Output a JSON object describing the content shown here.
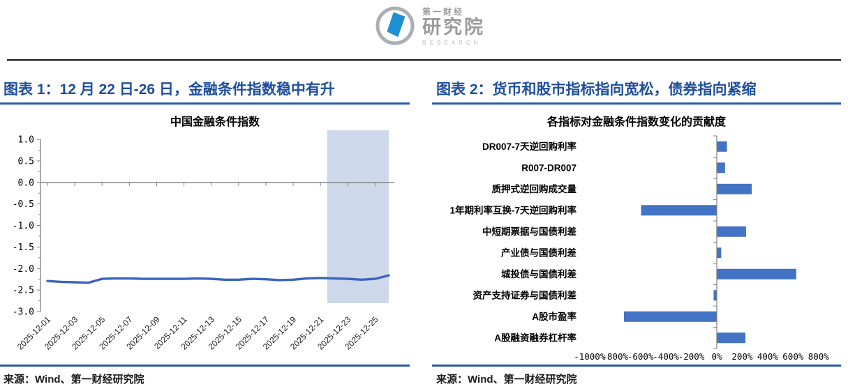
{
  "logo": {
    "brand_small": "第一财经",
    "brand_large": "研究院",
    "brand_sub": "RESEARCH"
  },
  "colors": {
    "header_blue": "#1f4e9c",
    "rule_blue": "#2a56a7",
    "bar_blue": "#4472c4",
    "line_blue": "#3a64be",
    "highlight": "#ced8eb",
    "axis_gray": "#808080"
  },
  "left_panel": {
    "header": "图表 1：12 月 22 日-26 日，金融条件指数稳中有升",
    "source": "来源：Wind、第一财经研究院"
  },
  "right_panel": {
    "header": "图表 2：货币和股市指标指向宽松，债券指向紧缩",
    "source": "来源：Wind、第一财经研究院"
  },
  "chart_data": [
    {
      "type": "line",
      "title": "中国金融条件指数",
      "x": [
        "2025-12-01",
        "2025-12-02",
        "2025-12-03",
        "2025-12-04",
        "2025-12-05",
        "2025-12-06",
        "2025-12-07",
        "2025-12-08",
        "2025-12-09",
        "2025-12-10",
        "2025-12-11",
        "2025-12-12",
        "2025-12-13",
        "2025-12-14",
        "2025-12-15",
        "2025-12-16",
        "2025-12-17",
        "2025-12-18",
        "2025-12-19",
        "2025-12-20",
        "2025-12-21",
        "2025-12-22",
        "2025-12-23",
        "2025-12-24",
        "2025-12-25",
        "2025-12-26"
      ],
      "values": [
        -2.29,
        -2.31,
        -2.32,
        -2.33,
        -2.24,
        -2.23,
        -2.23,
        -2.24,
        -2.24,
        -2.24,
        -2.24,
        -2.23,
        -2.24,
        -2.26,
        -2.26,
        -2.24,
        -2.25,
        -2.27,
        -2.26,
        -2.23,
        -2.22,
        -2.23,
        -2.24,
        -2.26,
        -2.24,
        -2.16
      ],
      "xtick_labels": [
        "2025-12-01",
        "2025-12-03",
        "2025-12-05",
        "2025-12-07",
        "2025-12-09",
        "2025-12-11",
        "2025-12-13",
        "2025-12-15",
        "2025-12-17",
        "2025-12-19",
        "2025-12-21",
        "2025-12-23",
        "2025-12-25"
      ],
      "xlabel": "",
      "ylabel": "",
      "ylim": [
        -3.0,
        1.0
      ],
      "ytick_step": 0.5,
      "ytick_minor_step": 0.25,
      "grid": false,
      "legend": "none",
      "highlight_span": [
        "2025-12-22",
        "2025-12-26"
      ],
      "highlight_color": "#ced8eb",
      "line_color": "#3a64be"
    },
    {
      "type": "bar",
      "orientation": "horizontal",
      "title": "各指标对金融条件指数变化的贡献度",
      "categories": [
        "DR007-7天逆回购利率",
        "R007-DR007",
        "质押式逆回购成交量",
        "1年期利率互换-7天逆回购利率",
        "中短期票据与国债利差",
        "产业债与国债利差",
        "城投债与国债利差",
        "资产支持证券与国债利差",
        "A股市盈率",
        "A股融资融券杠杆率"
      ],
      "values": [
        80,
        65,
        275,
        -595,
        230,
        35,
        625,
        -25,
        -730,
        225
      ],
      "unit": "%",
      "xlabel": "",
      "ylabel": "",
      "xlim": [
        -1000,
        800
      ],
      "xtick_step": 200,
      "grid": false,
      "legend": "none",
      "bar_color": "#4472c4"
    }
  ]
}
